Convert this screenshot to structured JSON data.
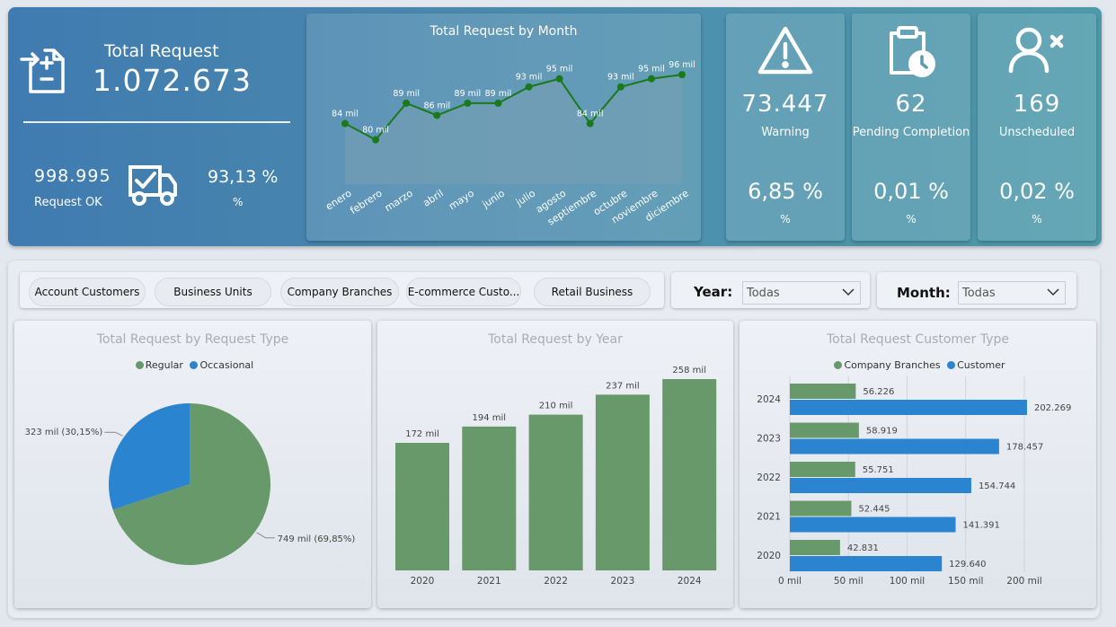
{
  "colors": {
    "green": "#68996a",
    "blue": "#2b84d0",
    "line": "#1a7a1a"
  },
  "header": {
    "total_label": "Total Request",
    "total_value": "1.072.673",
    "ok_value": "998.995",
    "ok_label": "Request OK",
    "ok_pct": "93,13 %",
    "ok_pct_label": "%"
  },
  "kpis": [
    {
      "icon": "warning-icon",
      "value": "73.447",
      "label": "Warning",
      "pct": "6,85 %",
      "pct_label": "%"
    },
    {
      "icon": "clipboard-clock-icon",
      "value": "62",
      "label": "Pending Completion",
      "pct": "0,01 %",
      "pct_label": "%"
    },
    {
      "icon": "user-x-icon",
      "value": "169",
      "label": "Unscheduled",
      "pct": "0,02 %",
      "pct_label": "%"
    }
  ],
  "slicers": {
    "pills": [
      "Account Customers",
      "Business Units",
      "Company Branches",
      "E-commerce Custo...",
      "Retail Business"
    ],
    "year_label": "Year",
    "year_value": "Todas",
    "month_label": "Month",
    "month_value": "Todas"
  },
  "chart_data": [
    {
      "type": "area",
      "title": "Total Request by Month",
      "categories": [
        "enero",
        "febrero",
        "marzo",
        "abril",
        "mayo",
        "junio",
        "julio",
        "agosto",
        "septiembre",
        "octubre",
        "noviembre",
        "diciembre"
      ],
      "values": [
        84,
        80,
        89,
        86,
        89,
        89,
        93,
        95,
        84,
        93,
        95,
        96
      ],
      "data_labels": [
        "84 mil",
        "80 mil",
        "89 mil",
        "86 mil",
        "89 mil",
        "89 mil",
        "93 mil",
        "95 mil",
        "84 mil",
        "93 mil",
        "95 mil",
        "96 mil"
      ]
    },
    {
      "type": "pie",
      "title": "Total Request by Request Type",
      "series": [
        {
          "name": "Regular",
          "value": 749,
          "label": "749 mil (69,85%)"
        },
        {
          "name": "Occasional",
          "value": 323,
          "label": "323 mil (30,15%)"
        }
      ],
      "legend": "top-center"
    },
    {
      "type": "bar",
      "title": "Total Request by Year",
      "categories": [
        "2020",
        "2021",
        "2022",
        "2023",
        "2024"
      ],
      "values": [
        172,
        194,
        210,
        237,
        258
      ],
      "data_labels": [
        "172 mil",
        "194 mil",
        "210 mil",
        "237 mil",
        "258 mil"
      ]
    },
    {
      "type": "bar",
      "orientation": "horizontal",
      "title": "Total Request Customer Type",
      "categories": [
        "2024",
        "2023",
        "2022",
        "2021",
        "2020"
      ],
      "series": [
        {
          "name": "Company Branches",
          "values": [
            56226,
            58919,
            55751,
            52445,
            42831
          ],
          "data_labels": [
            "56.226",
            "58.919",
            "55.751",
            "52.445",
            "42.831"
          ]
        },
        {
          "name": "Customer",
          "values": [
            202269,
            178457,
            154744,
            141391,
            129640
          ],
          "data_labels": [
            "202.269",
            "178.457",
            "154.744",
            "141.391",
            "129.640"
          ]
        }
      ],
      "xlim": [
        0,
        200000
      ],
      "x_ticks": [
        "0 mil",
        "50 mil",
        "100 mil",
        "150 mil",
        "200 mil"
      ],
      "legend": "top-center",
      "grid": true
    }
  ]
}
